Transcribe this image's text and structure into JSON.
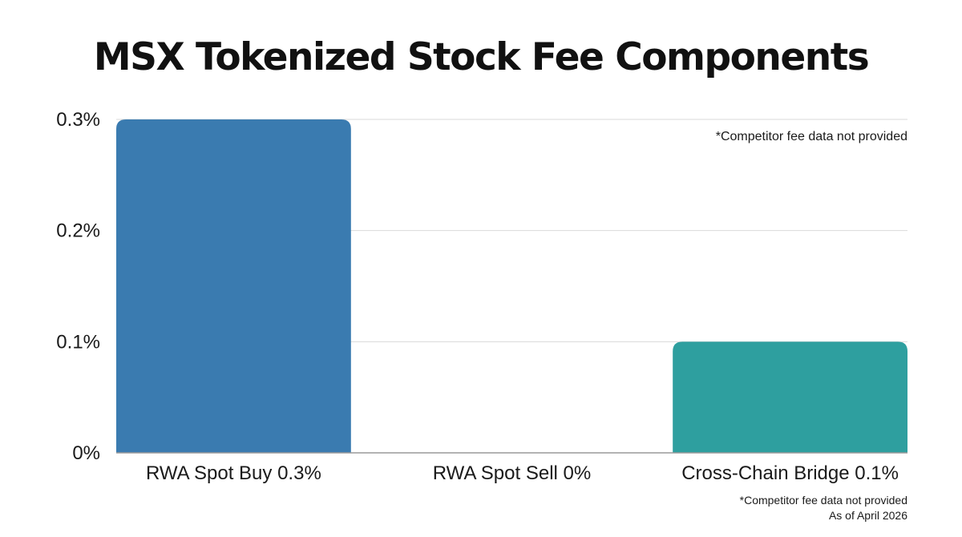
{
  "chart_data": {
    "type": "bar",
    "title": "MSX Tokenized Stock Fee Components",
    "categories": [
      "RWA Spot Buy 0.3%",
      "RWA Spot Sell 0%",
      "Cross-Chain Bridge 0.1%"
    ],
    "values": [
      0.3,
      0,
      0.1
    ],
    "unit": "%",
    "xlabel": "",
    "ylabel": "",
    "ylim": [
      0,
      0.3
    ],
    "yticks": [
      0,
      0.1,
      0.2,
      0.3
    ],
    "ytick_labels": [
      "0%",
      "0.1%",
      "0.2%",
      "0.3%"
    ],
    "bar_colors": [
      "#3a7bb0",
      "#3a7bb0",
      "#2e9f9f"
    ],
    "grid": true,
    "legend": "none",
    "annotation": "*Competitor fee data not provided"
  },
  "footnote": {
    "line1": "*Competitor fee data not provided",
    "line2": "As of April 2026"
  }
}
